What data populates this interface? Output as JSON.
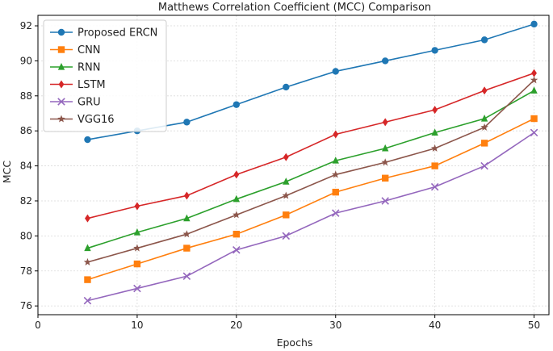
{
  "chart_data": {
    "type": "line",
    "title": "Matthews Correlation Coefficient (MCC) Comparison",
    "xlabel": "Epochs",
    "ylabel": "MCC",
    "xlim": [
      0,
      51.5
    ],
    "ylim": [
      75.5,
      92.6
    ],
    "xticks": [
      0,
      10,
      20,
      30,
      40,
      50
    ],
    "yticks": [
      76,
      78,
      80,
      82,
      84,
      86,
      88,
      90,
      92
    ],
    "grid": true,
    "legend_position": "top-left",
    "x": [
      5,
      10,
      15,
      20,
      25,
      30,
      35,
      40,
      45,
      50
    ],
    "series": [
      {
        "name": "Proposed ERCN",
        "color": "#1f77b4",
        "marker": "circle",
        "values": [
          85.5,
          86.0,
          86.5,
          87.5,
          88.5,
          89.4,
          90.0,
          90.6,
          91.2,
          92.1
        ]
      },
      {
        "name": "CNN",
        "color": "#ff7f0e",
        "marker": "square",
        "values": [
          77.5,
          78.4,
          79.3,
          80.1,
          81.2,
          82.5,
          83.3,
          84.0,
          85.3,
          86.7
        ]
      },
      {
        "name": "RNN",
        "color": "#2ca02c",
        "marker": "triangle",
        "values": [
          79.3,
          80.2,
          81.0,
          82.1,
          83.1,
          84.3,
          85.0,
          85.9,
          86.7,
          88.3
        ]
      },
      {
        "name": "LSTM",
        "color": "#d62728",
        "marker": "diamond",
        "values": [
          81.0,
          81.7,
          82.3,
          83.5,
          84.5,
          85.8,
          86.5,
          87.2,
          88.3,
          89.3
        ]
      },
      {
        "name": "GRU",
        "color": "#9467bd",
        "marker": "x",
        "values": [
          76.3,
          77.0,
          77.7,
          79.2,
          80.0,
          81.3,
          82.0,
          82.8,
          84.0,
          85.9
        ]
      },
      {
        "name": "VGG16",
        "color": "#8c564b",
        "marker": "star",
        "values": [
          78.5,
          79.3,
          80.1,
          81.2,
          82.3,
          83.5,
          84.2,
          85.0,
          86.2,
          88.9
        ]
      }
    ]
  }
}
